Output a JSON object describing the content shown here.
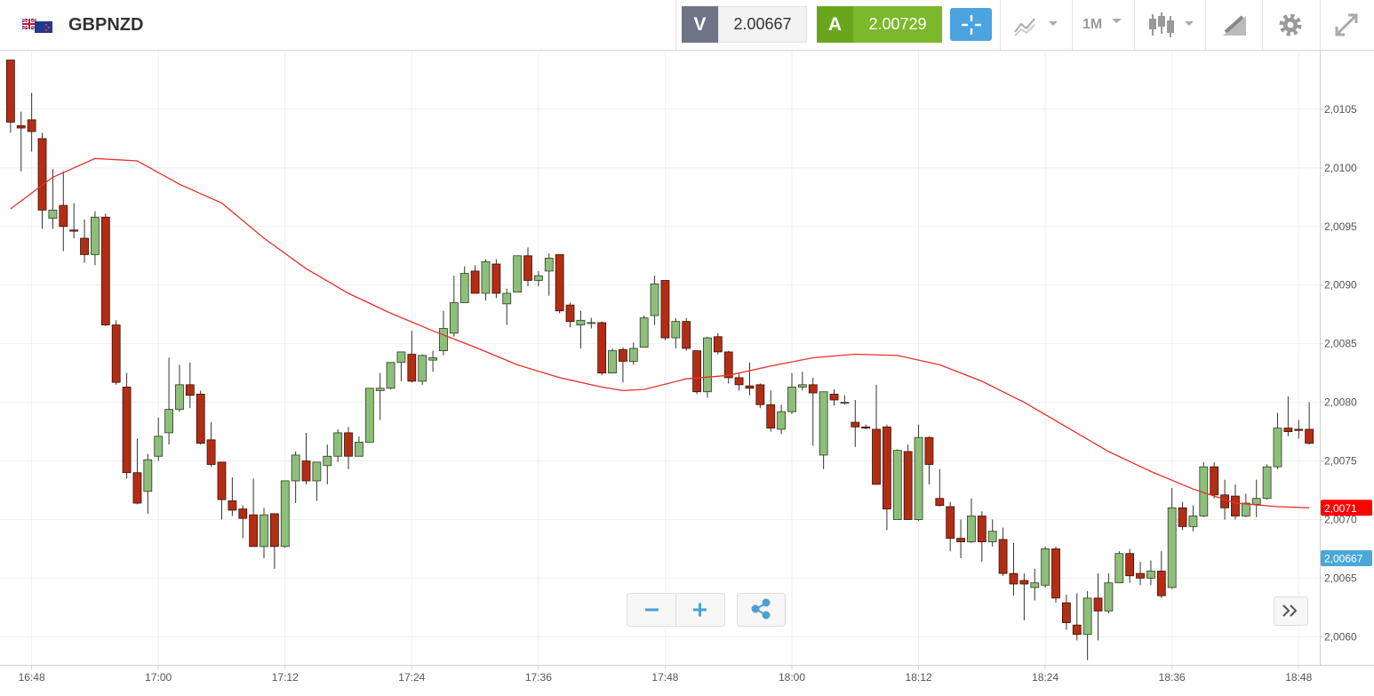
{
  "toolbar": {
    "symbol": "GBPNZD",
    "sell_label": "V",
    "sell_price": "2.00667",
    "buy_label": "A",
    "buy_price": "2.00729",
    "timeframe": "1M"
  },
  "chart_data": {
    "type": "candlestick",
    "x": [
      "16:46",
      "16:47",
      "16:48",
      "16:49",
      "16:50",
      "16:51",
      "16:52",
      "16:53",
      "16:54",
      "16:55",
      "16:56",
      "16:57",
      "16:58",
      "16:59",
      "17:00",
      "17:01",
      "17:02",
      "17:03",
      "17:04",
      "17:05",
      "17:06",
      "17:07",
      "17:08",
      "17:09",
      "17:10",
      "17:11",
      "17:12",
      "17:13",
      "17:14",
      "17:15",
      "17:16",
      "17:17",
      "17:18",
      "17:19",
      "17:20",
      "17:21",
      "17:22",
      "17:23",
      "17:24",
      "17:25",
      "17:26",
      "17:27",
      "17:28",
      "17:29",
      "17:30",
      "17:31",
      "17:32",
      "17:33",
      "17:34",
      "17:35",
      "17:36",
      "17:37",
      "17:38",
      "17:39",
      "17:40",
      "17:41",
      "17:42",
      "17:43",
      "17:44",
      "17:45",
      "17:46",
      "17:47",
      "17:48",
      "17:49",
      "17:50",
      "17:51",
      "17:52",
      "17:53",
      "17:54",
      "17:55",
      "17:56",
      "17:57",
      "17:58",
      "17:59",
      "18:00",
      "18:01",
      "18:02",
      "18:03",
      "18:04",
      "18:05",
      "18:06",
      "18:07",
      "18:08",
      "18:09",
      "18:10",
      "18:11",
      "18:12",
      "18:13",
      "18:14",
      "18:15",
      "18:16",
      "18:17",
      "18:18",
      "18:19",
      "18:20",
      "18:21",
      "18:22",
      "18:23",
      "18:24",
      "18:25",
      "18:26",
      "18:27",
      "18:28",
      "18:29",
      "18:30",
      "18:31",
      "18:32",
      "18:33",
      "18:34",
      "18:35",
      "18:36",
      "18:37",
      "18:38",
      "18:39",
      "18:40",
      "18:41",
      "18:42",
      "18:43",
      "18:44",
      "18:45",
      "18:46",
      "18:47",
      "18:48",
      "18:49"
    ],
    "open": [
      2.01092,
      2.01036,
      2.01041,
      2.01025,
      2.00957,
      2.00968,
      2.00947,
      2.0094,
      2.00926,
      2.00958,
      2.00866,
      2.00813,
      2.0074,
      2.00724,
      2.00754,
      2.00774,
      2.00794,
      2.00815,
      2.00807,
      2.00768,
      2.00749,
      2.00716,
      2.00709,
      2.00704,
      2.00677,
      2.00705,
      2.00677,
      2.00733,
      2.0075,
      2.00733,
      2.00746,
      2.00754,
      2.00774,
      2.00754,
      2.00766,
      2.0081,
      2.00812,
      2.00834,
      2.00841,
      2.00818,
      2.00836,
      2.00844,
      2.00859,
      2.00885,
      2.00912,
      2.00893,
      2.00918,
      2.00884,
      2.00894,
      2.00925,
      2.00904,
      2.00912,
      2.00926,
      2.00883,
      2.00866,
      2.00868,
      2.00868,
      2.00825,
      2.00845,
      2.00835,
      2.00847,
      2.00874,
      2.00904,
      2.00855,
      2.00869,
      2.00844,
      2.00809,
      2.00856,
      2.00843,
      2.00821,
      2.00814,
      2.00815,
      2.00798,
      2.00777,
      2.00792,
      2.00813,
      2.00815,
      2.00755,
      2.00807,
      2.008,
      2.00783,
      2.00779,
      2.00777,
      2.00779,
      2.007,
      2.00758,
      2.007,
      2.0077,
      2.00718,
      2.00711,
      2.00684,
      2.00681,
      2.00703,
      2.00681,
      2.00683,
      2.00654,
      2.00648,
      2.00642,
      2.00644,
      2.00675,
      2.00629,
      2.0061,
      2.00602,
      2.00633,
      2.00622,
      2.00646,
      2.00671,
      2.00654,
      2.0065,
      2.00656,
      2.00642,
      2.0071,
      2.00694,
      2.00703,
      2.00745,
      2.00721,
      2.0072,
      2.00703,
      2.00713,
      2.00718,
      2.00745,
      2.00778,
      2.00777,
      2.00777
    ],
    "high": [
      2.01092,
      2.01048,
      2.01064,
      2.0103,
      2.00999,
      2.00997,
      2.0097,
      2.00956,
      2.00963,
      2.00961,
      2.0087,
      2.00825,
      2.00769,
      2.00756,
      2.00787,
      2.00838,
      2.00832,
      2.00834,
      2.0081,
      2.00783,
      2.00749,
      2.00736,
      2.00712,
      2.00735,
      2.0071,
      2.00705,
      2.00733,
      2.00758,
      2.00774,
      2.00749,
      2.00764,
      2.00777,
      2.00779,
      2.00771,
      2.00812,
      2.00825,
      2.00834,
      2.00843,
      2.00861,
      2.00841,
      2.00844,
      2.00878,
      2.00908,
      2.00916,
      2.00917,
      2.00922,
      2.00922,
      2.00897,
      2.00925,
      2.00932,
      2.00912,
      2.00927,
      2.00926,
      2.00885,
      2.00878,
      2.00872,
      2.00869,
      2.00846,
      2.00847,
      2.00851,
      2.00874,
      2.00908,
      2.00904,
      2.00872,
      2.00872,
      2.00844,
      2.00856,
      2.00859,
      2.00844,
      2.00825,
      2.00834,
      2.00816,
      2.0081,
      2.00798,
      2.00825,
      2.00826,
      2.00821,
      2.00809,
      2.00811,
      2.00806,
      2.00802,
      2.00781,
      2.00815,
      2.00781,
      2.0076,
      2.00764,
      2.00781,
      2.00771,
      2.00743,
      2.00715,
      2.007,
      2.00718,
      2.00707,
      2.007,
      2.00693,
      2.0068,
      2.00654,
      2.00658,
      2.00677,
      2.00677,
      2.00636,
      2.00637,
      2.00639,
      2.00654,
      2.00654,
      2.00673,
      2.00675,
      2.00664,
      2.00665,
      2.00673,
      2.00727,
      2.00715,
      2.00712,
      2.00749,
      2.00749,
      2.00734,
      2.0073,
      2.00722,
      2.00734,
      2.00747,
      2.00791,
      2.00805,
      2.00785,
      2.008
    ],
    "low": [
      2.0103,
      2.00997,
      2.01014,
      2.00948,
      2.00948,
      2.00929,
      2.0094,
      2.00919,
      2.00917,
      2.00865,
      2.00815,
      2.00735,
      2.00713,
      2.00705,
      2.0075,
      2.00764,
      2.00792,
      2.00795,
      2.00764,
      2.00745,
      2.007,
      2.00703,
      2.00684,
      2.00677,
      2.00667,
      2.00658,
      2.00676,
      2.00714,
      2.0073,
      2.00716,
      2.0073,
      2.00749,
      2.00743,
      2.00754,
      2.00766,
      2.00785,
      2.00811,
      2.00818,
      2.00817,
      2.00815,
      2.00826,
      2.0084,
      2.00856,
      2.00885,
      2.00893,
      2.00887,
      2.00889,
      2.00866,
      2.00894,
      2.00899,
      2.00899,
      2.00891,
      2.00876,
      2.00864,
      2.00846,
      2.00863,
      2.00823,
      2.00825,
      2.00817,
      2.00832,
      2.00847,
      2.00866,
      2.00853,
      2.00846,
      2.00844,
      2.00807,
      2.00804,
      2.00841,
      2.00816,
      2.0081,
      2.00806,
      2.00795,
      2.00775,
      2.00773,
      2.0079,
      2.0081,
      2.00763,
      2.00743,
      2.00797,
      2.00798,
      2.00762,
      2.00777,
      2.0073,
      2.00691,
      2.007,
      2.007,
      2.00699,
      2.0073,
      2.00711,
      2.00673,
      2.00667,
      2.0068,
      2.00664,
      2.00677,
      2.00652,
      2.00635,
      2.00614,
      2.00631,
      2.00642,
      2.00629,
      2.00606,
      2.00597,
      2.0058,
      2.00597,
      2.0062,
      2.00646,
      2.00646,
      2.00644,
      2.00644,
      2.00633,
      2.00641,
      2.00691,
      2.0069,
      2.00702,
      2.00718,
      2.007,
      2.007,
      2.00702,
      2.00702,
      2.00717,
      2.00743,
      2.00771,
      2.00769,
      2.00764
    ],
    "close": [
      2.01039,
      2.01034,
      2.01031,
      2.00964,
      2.00964,
      2.0095,
      2.00946,
      2.00926,
      2.00958,
      2.00866,
      2.00817,
      2.0074,
      2.00714,
      2.00751,
      2.00771,
      2.00794,
      2.00815,
      2.00806,
      2.00765,
      2.00747,
      2.00717,
      2.00708,
      2.00701,
      2.00677,
      2.00704,
      2.00677,
      2.00733,
      2.00755,
      2.00733,
      2.00749,
      2.00754,
      2.00774,
      2.00754,
      2.00766,
      2.00812,
      2.00812,
      2.00834,
      2.00843,
      2.00818,
      2.0084,
      2.00838,
      2.00863,
      2.00885,
      2.0091,
      2.00893,
      2.0092,
      2.00893,
      2.00893,
      2.00925,
      2.00904,
      2.00908,
      2.00923,
      2.00878,
      2.00869,
      2.0087,
      2.00868,
      2.00825,
      2.00844,
      2.00835,
      2.00846,
      2.00872,
      2.00901,
      2.00855,
      2.00869,
      2.00846,
      2.00809,
      2.00855,
      2.00843,
      2.00821,
      2.00815,
      2.00812,
      2.00798,
      2.00778,
      2.00792,
      2.00813,
      2.00815,
      2.00808,
      2.00809,
      2.00802,
      2.008,
      2.00779,
      2.00778,
      2.0073,
      2.00709,
      2.00759,
      2.007,
      2.0077,
      2.00747,
      2.00712,
      2.00684,
      2.00681,
      2.00703,
      2.00681,
      2.0069,
      2.00654,
      2.00645,
      2.00645,
      2.00646,
      2.00675,
      2.00633,
      2.00612,
      2.00602,
      2.00633,
      2.00622,
      2.00646,
      2.00671,
      2.00652,
      2.0065,
      2.00656,
      2.00635,
      2.0071,
      2.00694,
      2.00703,
      2.00745,
      2.00721,
      2.0071,
      2.00703,
      2.00714,
      2.00718,
      2.00745,
      2.00778,
      2.00775,
      2.00776,
      2.00765
    ],
    "up_color": "#8dbf7b",
    "down_color": "#b32d14",
    "overlay": {
      "color": "#e8302a",
      "x": [
        "16:46",
        "16:50",
        "16:54",
        "16:58",
        "17:02",
        "17:06",
        "17:10",
        "17:14",
        "17:18",
        "17:22",
        "17:26",
        "17:30",
        "17:34",
        "17:38",
        "17:42",
        "17:44",
        "17:46",
        "17:50",
        "17:54",
        "17:58",
        "18:02",
        "18:06",
        "18:10",
        "18:14",
        "18:18",
        "18:22",
        "18:26",
        "18:30",
        "18:34",
        "18:38",
        "18:42",
        "18:46",
        "18:49"
      ],
      "values": [
        2.00965,
        2.00992,
        2.01008,
        2.01006,
        2.00986,
        2.0097,
        2.0094,
        2.00914,
        2.00893,
        2.00876,
        2.00861,
        2.00847,
        2.00832,
        2.00821,
        2.00813,
        2.0081,
        2.00811,
        2.0082,
        2.00823,
        2.00831,
        2.00838,
        2.00841,
        2.0084,
        2.00832,
        2.00818,
        2.008,
        2.00779,
        2.00758,
        2.00741,
        2.00726,
        2.00714,
        2.00711,
        2.0071
      ]
    },
    "price_tags": [
      {
        "value": 2.0071,
        "label": "2,0071",
        "color": "#ff0000"
      },
      {
        "value": 2.00667,
        "label": "2,00667",
        "color": "#4aa8d8"
      }
    ],
    "xlim": [
      "16:45",
      "18:50"
    ],
    "xticks": [
      "16:48",
      "17:00",
      "17:12",
      "17:24",
      "17:36",
      "17:48",
      "18:00",
      "18:12",
      "18:24",
      "18:36",
      "18:48"
    ],
    "ylim": [
      2.00576,
      2.011
    ],
    "yticks": [
      {
        "value": 2.006,
        "label": "2,0060"
      },
      {
        "value": 2.0065,
        "label": "2,0065"
      },
      {
        "value": 2.007,
        "label": "2,0070"
      },
      {
        "value": 2.0075,
        "label": "2,0075"
      },
      {
        "value": 2.008,
        "label": "2,0080"
      },
      {
        "value": 2.0085,
        "label": "2,0085"
      },
      {
        "value": 2.009,
        "label": "2,0090"
      },
      {
        "value": 2.0095,
        "label": "2,0095"
      },
      {
        "value": 2.01,
        "label": "2,0100"
      },
      {
        "value": 2.0105,
        "label": "2,0105"
      }
    ],
    "grid": true
  }
}
